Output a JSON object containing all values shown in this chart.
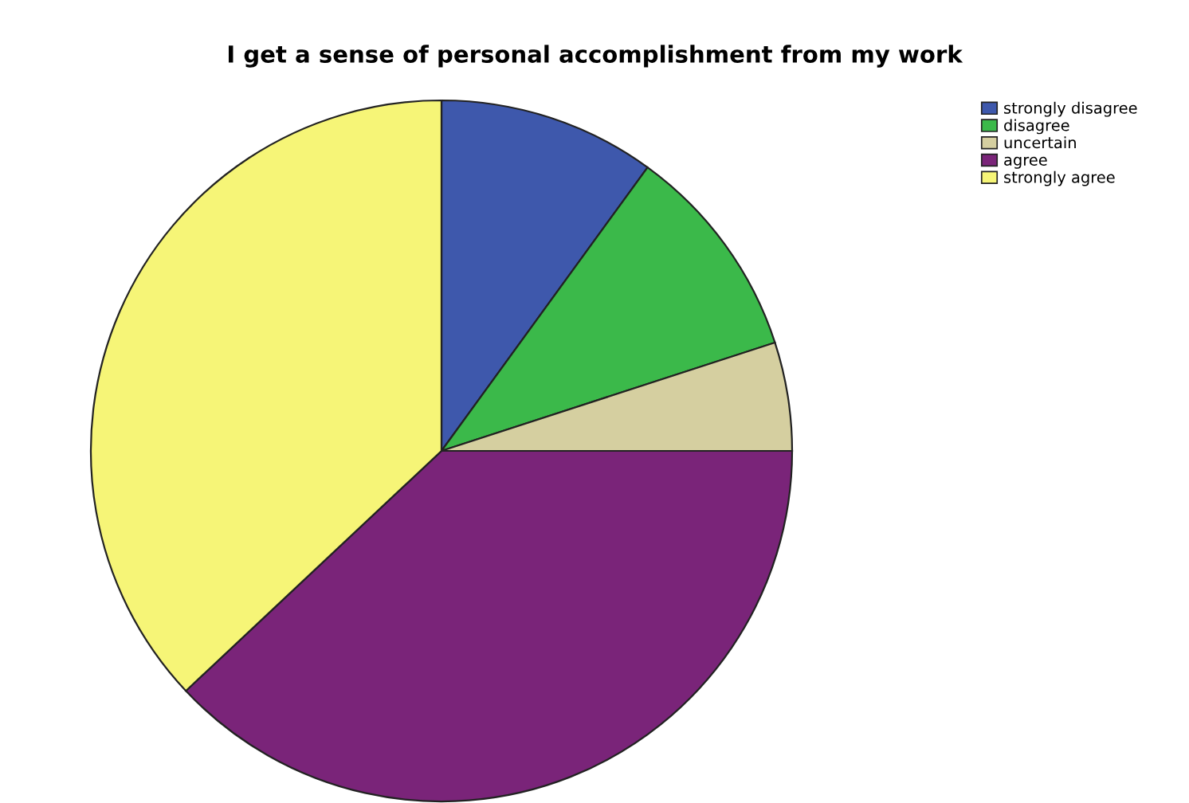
{
  "chart_data": {
    "type": "pie",
    "title": "I get a sense of personal accomplishment from my work",
    "categories": [
      "strongly disagree",
      "disagree",
      "uncertain",
      "agree",
      "strongly agree"
    ],
    "values": [
      10,
      10,
      5,
      38,
      37
    ],
    "colors": [
      "#3e58ac",
      "#3bb94a",
      "#d5cfa0",
      "#7a2479",
      "#f6f577"
    ],
    "legend": "top right"
  }
}
